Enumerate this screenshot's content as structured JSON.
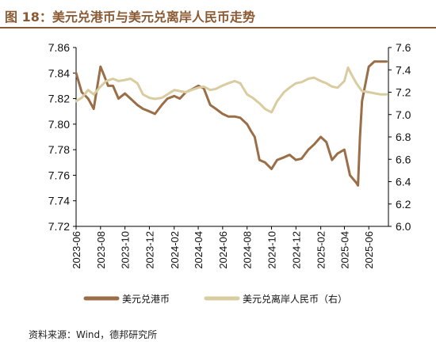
{
  "figure": {
    "title": "图 18：美元兑港币与美元兑离岸人民币走势",
    "source": "资料来源：Wind，德邦研究所"
  },
  "colors": {
    "title": "#8b5a33",
    "hkd": "#9a6e47",
    "cnh": "#d9cca0",
    "axis": "#000000"
  },
  "chart_data": {
    "type": "line",
    "left_axis": {
      "ylim": [
        7.72,
        7.86
      ],
      "ticks": [
        "7.72",
        "7.74",
        "7.76",
        "7.78",
        "7.80",
        "7.82",
        "7.84",
        "7.86"
      ]
    },
    "right_axis": {
      "ylim": [
        6.0,
        7.6
      ],
      "ticks": [
        "6.0",
        "6.2",
        "6.4",
        "6.6",
        "6.8",
        "7.0",
        "7.2",
        "7.4",
        "7.6"
      ]
    },
    "x_ticks": [
      "2023-06",
      "2023-08",
      "2023-10",
      "2023-12",
      "2024-02",
      "2024-04",
      "2024-06",
      "2024-08",
      "2024-10",
      "2024-12",
      "2025-02",
      "2025-04",
      "2025-06"
    ],
    "legend_position": "bottom",
    "grid": false,
    "series": [
      {
        "name": "美元兑港币",
        "axis": "left",
        "x": [
          "2023-06-01",
          "2023-06-15",
          "2023-07-01",
          "2023-07-15",
          "2023-08-01",
          "2023-08-10",
          "2023-08-20",
          "2023-09-01",
          "2023-09-15",
          "2023-10-01",
          "2023-10-15",
          "2023-11-01",
          "2023-11-15",
          "2023-12-01",
          "2023-12-15",
          "2024-01-01",
          "2024-01-15",
          "2024-02-01",
          "2024-02-15",
          "2024-03-01",
          "2024-03-15",
          "2024-04-01",
          "2024-04-15",
          "2024-05-01",
          "2024-05-15",
          "2024-06-01",
          "2024-06-15",
          "2024-07-01",
          "2024-07-15",
          "2024-08-01",
          "2024-08-10",
          "2024-08-20",
          "2024-09-01",
          "2024-09-15",
          "2024-10-01",
          "2024-10-15",
          "2024-11-01",
          "2024-11-15",
          "2024-12-01",
          "2024-12-15",
          "2025-01-01",
          "2025-01-15",
          "2025-02-01",
          "2025-02-15",
          "2025-03-01",
          "2025-03-15",
          "2025-04-01",
          "2025-04-15",
          "2025-05-01",
          "2025-05-05",
          "2025-05-10",
          "2025-05-15",
          "2025-06-01",
          "2025-06-15",
          "2025-07-01",
          "2025-07-15"
        ],
        "y": [
          7.84,
          7.825,
          7.82,
          7.812,
          7.845,
          7.838,
          7.83,
          7.83,
          7.82,
          7.824,
          7.82,
          7.815,
          7.812,
          7.81,
          7.808,
          7.815,
          7.82,
          7.822,
          7.82,
          7.825,
          7.827,
          7.83,
          7.828,
          7.815,
          7.812,
          7.808,
          7.806,
          7.806,
          7.805,
          7.8,
          7.795,
          7.79,
          7.772,
          7.77,
          7.765,
          7.772,
          7.774,
          7.776,
          7.772,
          7.773,
          7.78,
          7.784,
          7.79,
          7.786,
          7.772,
          7.777,
          7.78,
          7.76,
          7.754,
          7.752,
          7.79,
          7.818,
          7.845,
          7.849,
          7.849,
          7.849
        ]
      },
      {
        "name": "美元兑离岸人民币（右）",
        "axis": "right",
        "x": [
          "2023-06-01",
          "2023-06-15",
          "2023-07-01",
          "2023-07-15",
          "2023-08-01",
          "2023-08-15",
          "2023-09-01",
          "2023-09-15",
          "2023-10-01",
          "2023-10-15",
          "2023-11-01",
          "2023-11-15",
          "2023-12-01",
          "2023-12-15",
          "2024-01-01",
          "2024-01-15",
          "2024-02-01",
          "2024-02-15",
          "2024-03-01",
          "2024-03-15",
          "2024-04-01",
          "2024-04-15",
          "2024-05-01",
          "2024-05-15",
          "2024-06-01",
          "2024-06-15",
          "2024-07-01",
          "2024-07-15",
          "2024-08-01",
          "2024-08-15",
          "2024-09-01",
          "2024-09-15",
          "2024-10-01",
          "2024-10-15",
          "2024-11-01",
          "2024-11-15",
          "2024-12-01",
          "2024-12-15",
          "2025-01-01",
          "2025-01-15",
          "2025-02-01",
          "2025-02-15",
          "2025-03-01",
          "2025-03-15",
          "2025-04-01",
          "2025-04-10",
          "2025-04-20",
          "2025-05-01",
          "2025-05-15",
          "2025-06-01",
          "2025-06-15",
          "2025-07-01",
          "2025-07-15"
        ],
        "y": [
          7.12,
          7.15,
          7.22,
          7.18,
          7.25,
          7.3,
          7.32,
          7.3,
          7.31,
          7.32,
          7.28,
          7.18,
          7.15,
          7.14,
          7.15,
          7.18,
          7.22,
          7.21,
          7.2,
          7.22,
          7.24,
          7.25,
          7.22,
          7.23,
          7.26,
          7.28,
          7.3,
          7.28,
          7.18,
          7.15,
          7.1,
          7.05,
          7.02,
          7.12,
          7.2,
          7.24,
          7.28,
          7.29,
          7.32,
          7.33,
          7.3,
          7.28,
          7.25,
          7.24,
          7.3,
          7.42,
          7.35,
          7.28,
          7.21,
          7.2,
          7.19,
          7.18,
          7.18
        ]
      }
    ]
  }
}
